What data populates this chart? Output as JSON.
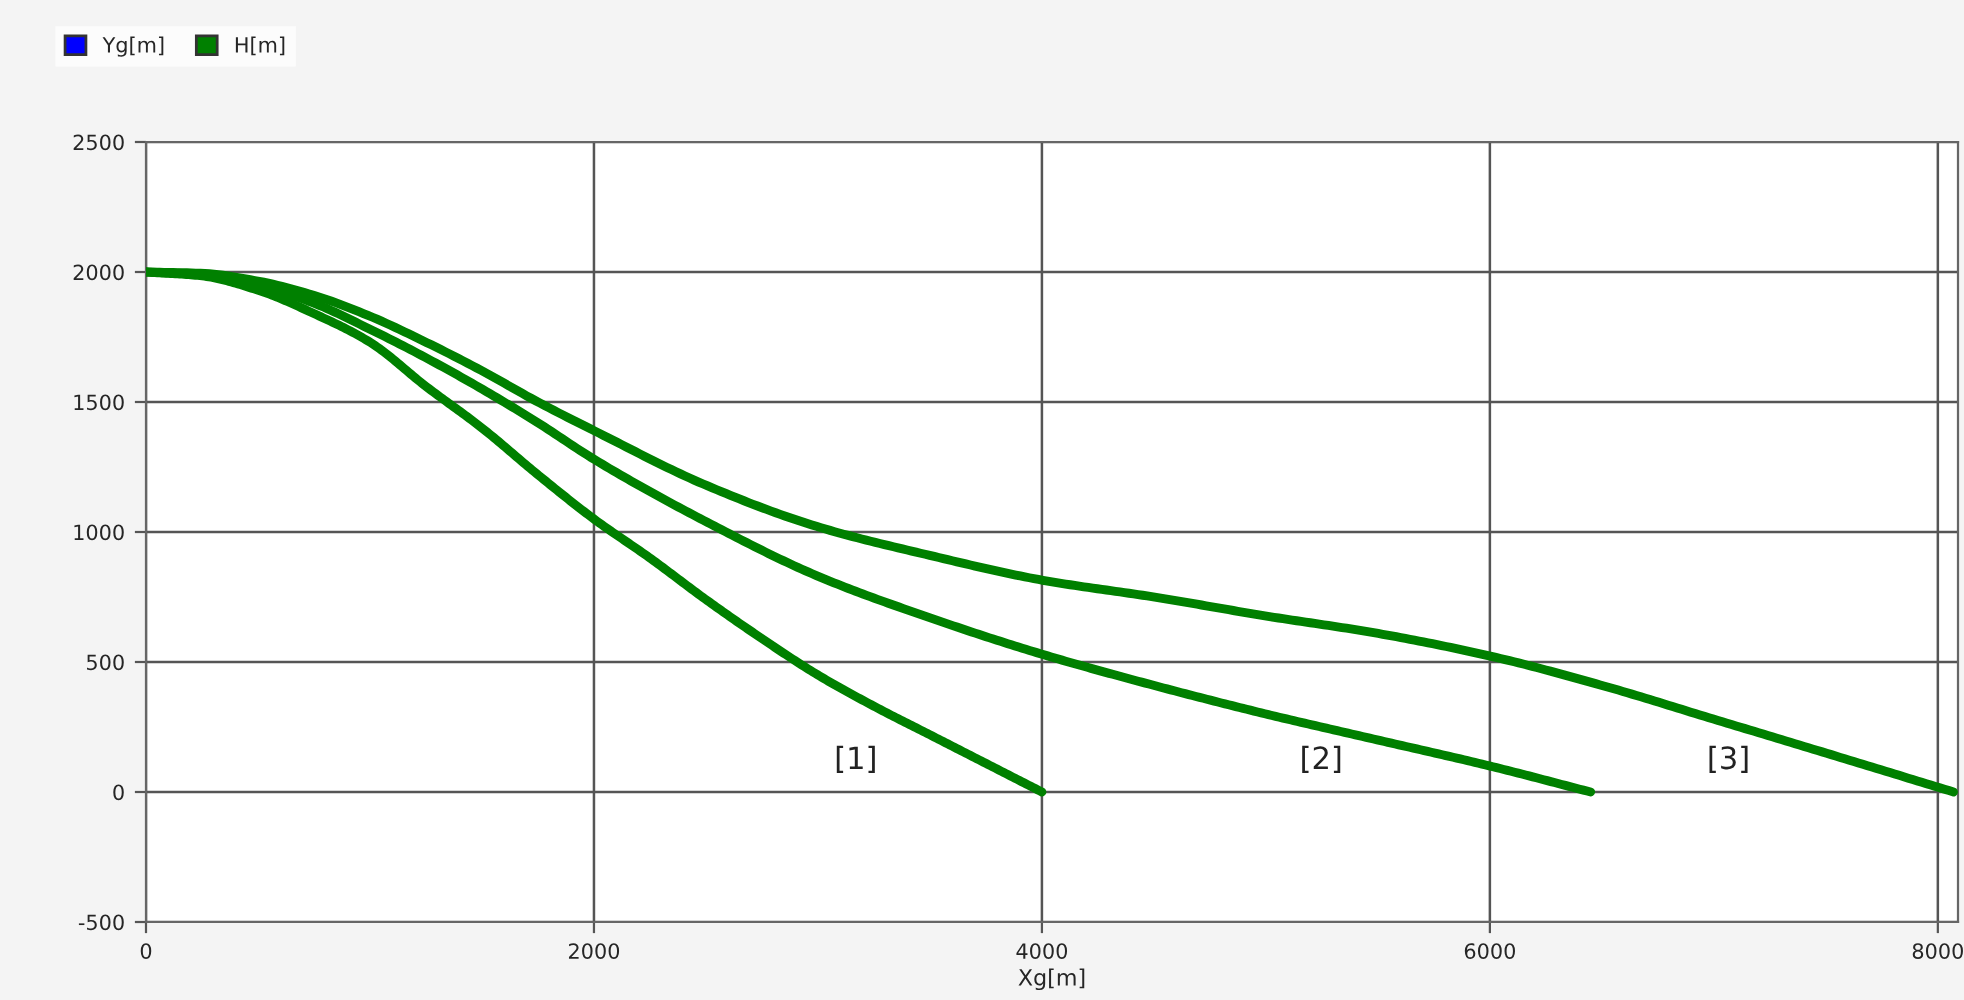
{
  "chart_data": {
    "type": "line",
    "xlabel": "Xg[m]",
    "series": [
      {
        "name": "Yg[m]",
        "color": "#0000ff"
      },
      {
        "name": "H[m]",
        "color": "#008000",
        "x": [
          0,
          250,
          500,
          750,
          1000,
          1250,
          1500,
          1750,
          2000,
          2250,
          2500,
          2750,
          3000,
          3250,
          3500,
          3750,
          4000
        ],
        "values": [
          2000,
          1985,
          1930,
          1840,
          1730,
          1560,
          1400,
          1220,
          1050,
          900,
          740,
          590,
          450,
          330,
          220,
          110,
          0
        ]
      },
      {
        "color": "#008000",
        "x": [
          0,
          250,
          500,
          750,
          1000,
          1250,
          1500,
          1750,
          2000,
          2500,
          3000,
          3500,
          4000,
          4500,
          5000,
          5500,
          6000,
          6450
        ],
        "values": [
          2000,
          1990,
          1950,
          1880,
          1780,
          1670,
          1550,
          1420,
          1280,
          1040,
          830,
          670,
          530,
          410,
          300,
          200,
          100,
          0
        ]
      },
      {
        "color": "#008000",
        "x": [
          0,
          250,
          500,
          750,
          1000,
          1250,
          1500,
          1750,
          2000,
          2500,
          3000,
          3500,
          4000,
          4500,
          5000,
          5500,
          6000,
          6500,
          7000,
          7500,
          8070
        ],
        "values": [
          2000,
          1995,
          1965,
          1910,
          1830,
          1730,
          1620,
          1500,
          1390,
          1180,
          1020,
          910,
          815,
          750,
          677,
          610,
          523,
          410,
          280,
          150,
          0
        ]
      }
    ],
    "annotations": [
      "[1]",
      "[2]",
      "[3]"
    ],
    "xlim": [
      0,
      8090
    ],
    "xticks": [
      0,
      2000,
      4000,
      6000,
      8000
    ],
    "ylim": [
      -500,
      2500
    ],
    "yticks": [
      -500,
      0,
      500,
      1000,
      1500,
      2000,
      2500
    ],
    "grid": true,
    "legend": "top left",
    "line_style": "solid",
    "marker": "none"
  }
}
